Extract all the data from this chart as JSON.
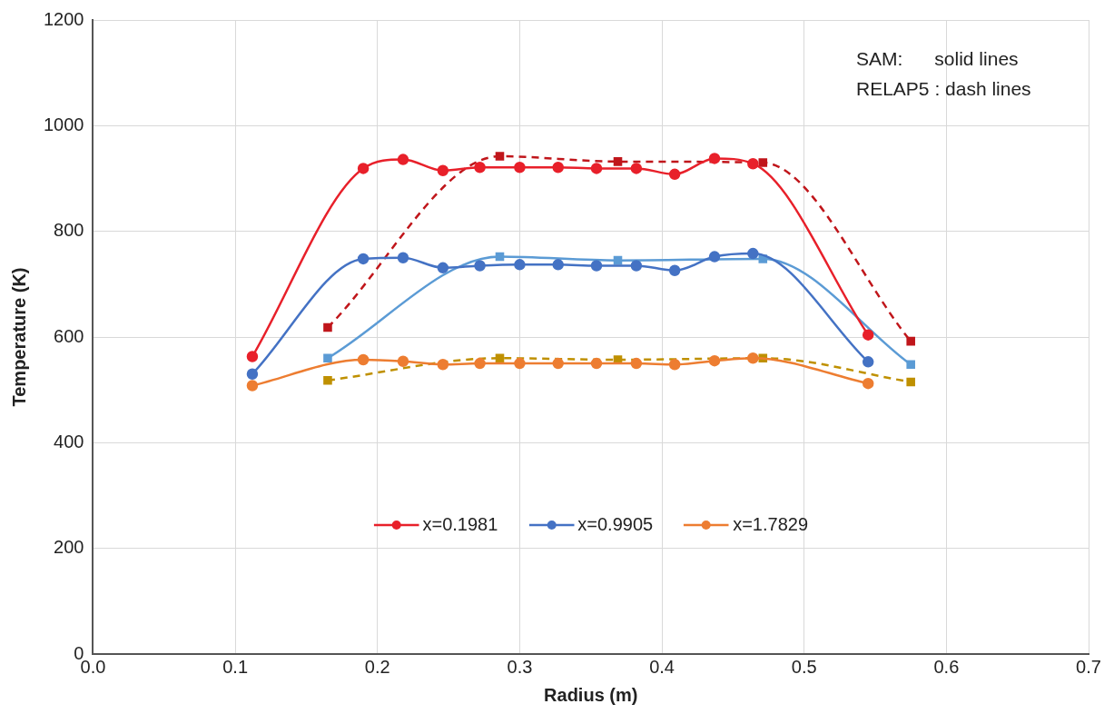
{
  "chart_data": {
    "type": "line",
    "xlabel": "Radius (m)",
    "ylabel": "Temperature (K)",
    "xlim": [
      0,
      0.7
    ],
    "xticks": [
      {
        "value": 0,
        "label": "0.0"
      },
      {
        "value": 0.1,
        "label": "0.1"
      },
      {
        "value": 0.2,
        "label": "0.2"
      },
      {
        "value": 0.3,
        "label": "0.3"
      },
      {
        "value": 0.4,
        "label": "0.4"
      },
      {
        "value": 0.5,
        "label": "0.5"
      },
      {
        "value": 0.6,
        "label": "0.6"
      },
      {
        "value": 0.7,
        "label": "0.7"
      }
    ],
    "ylim": [
      0,
      1200
    ],
    "yticks": [
      0,
      200,
      400,
      600,
      800,
      1000,
      1200
    ],
    "grid": true,
    "legend": "bottom",
    "annotations": [
      "SAM:      solid lines",
      "RELAP5 : dash lines"
    ],
    "series": [
      {
        "name": "x=0.1981",
        "color": "#e8202a",
        "marker": "circle",
        "line_style": "solid",
        "x": [
          0.112,
          0.19,
          0.218,
          0.246,
          0.272,
          0.3,
          0.327,
          0.354,
          0.382,
          0.409,
          0.437,
          0.464,
          0.545
        ],
        "values": [
          563,
          919,
          936,
          915,
          921,
          921,
          921,
          919,
          919,
          908,
          938,
          928,
          604
        ]
      },
      {
        "name": "x=0.9905",
        "color": "#4472c4",
        "marker": "circle",
        "line_style": "solid",
        "x": [
          0.112,
          0.19,
          0.218,
          0.246,
          0.272,
          0.3,
          0.327,
          0.354,
          0.382,
          0.409,
          0.437,
          0.464,
          0.545
        ],
        "values": [
          530,
          748,
          750,
          731,
          735,
          737,
          737,
          735,
          735,
          726,
          752,
          758,
          553
        ]
      },
      {
        "name": "x=1.7829",
        "color": "#ed7d31",
        "marker": "circle",
        "line_style": "solid",
        "x": [
          0.112,
          0.19,
          0.218,
          0.246,
          0.272,
          0.3,
          0.327,
          0.354,
          0.382,
          0.409,
          0.437,
          0.464,
          0.545
        ],
        "values": [
          508,
          557,
          554,
          548,
          550,
          550,
          550,
          550,
          550,
          548,
          555,
          560,
          512
        ]
      },
      {
        "color": "#c0161b",
        "marker": "square",
        "line_style": "dashed",
        "x": [
          0.165,
          0.286,
          0.369,
          0.471,
          0.575
        ],
        "values": [
          618,
          942,
          932,
          930,
          592
        ]
      },
      {
        "color": "#5b9bd5",
        "marker": "square",
        "line_style": "solid",
        "x": [
          0.165,
          0.286,
          0.369,
          0.471,
          0.575
        ],
        "values": [
          560,
          752,
          745,
          748,
          548
        ]
      },
      {
        "color": "#bf9000",
        "marker": "square",
        "line_style": "dashed",
        "x": [
          0.165,
          0.286,
          0.369,
          0.471,
          0.575
        ],
        "values": [
          518,
          560,
          557,
          560,
          515
        ]
      }
    ]
  }
}
